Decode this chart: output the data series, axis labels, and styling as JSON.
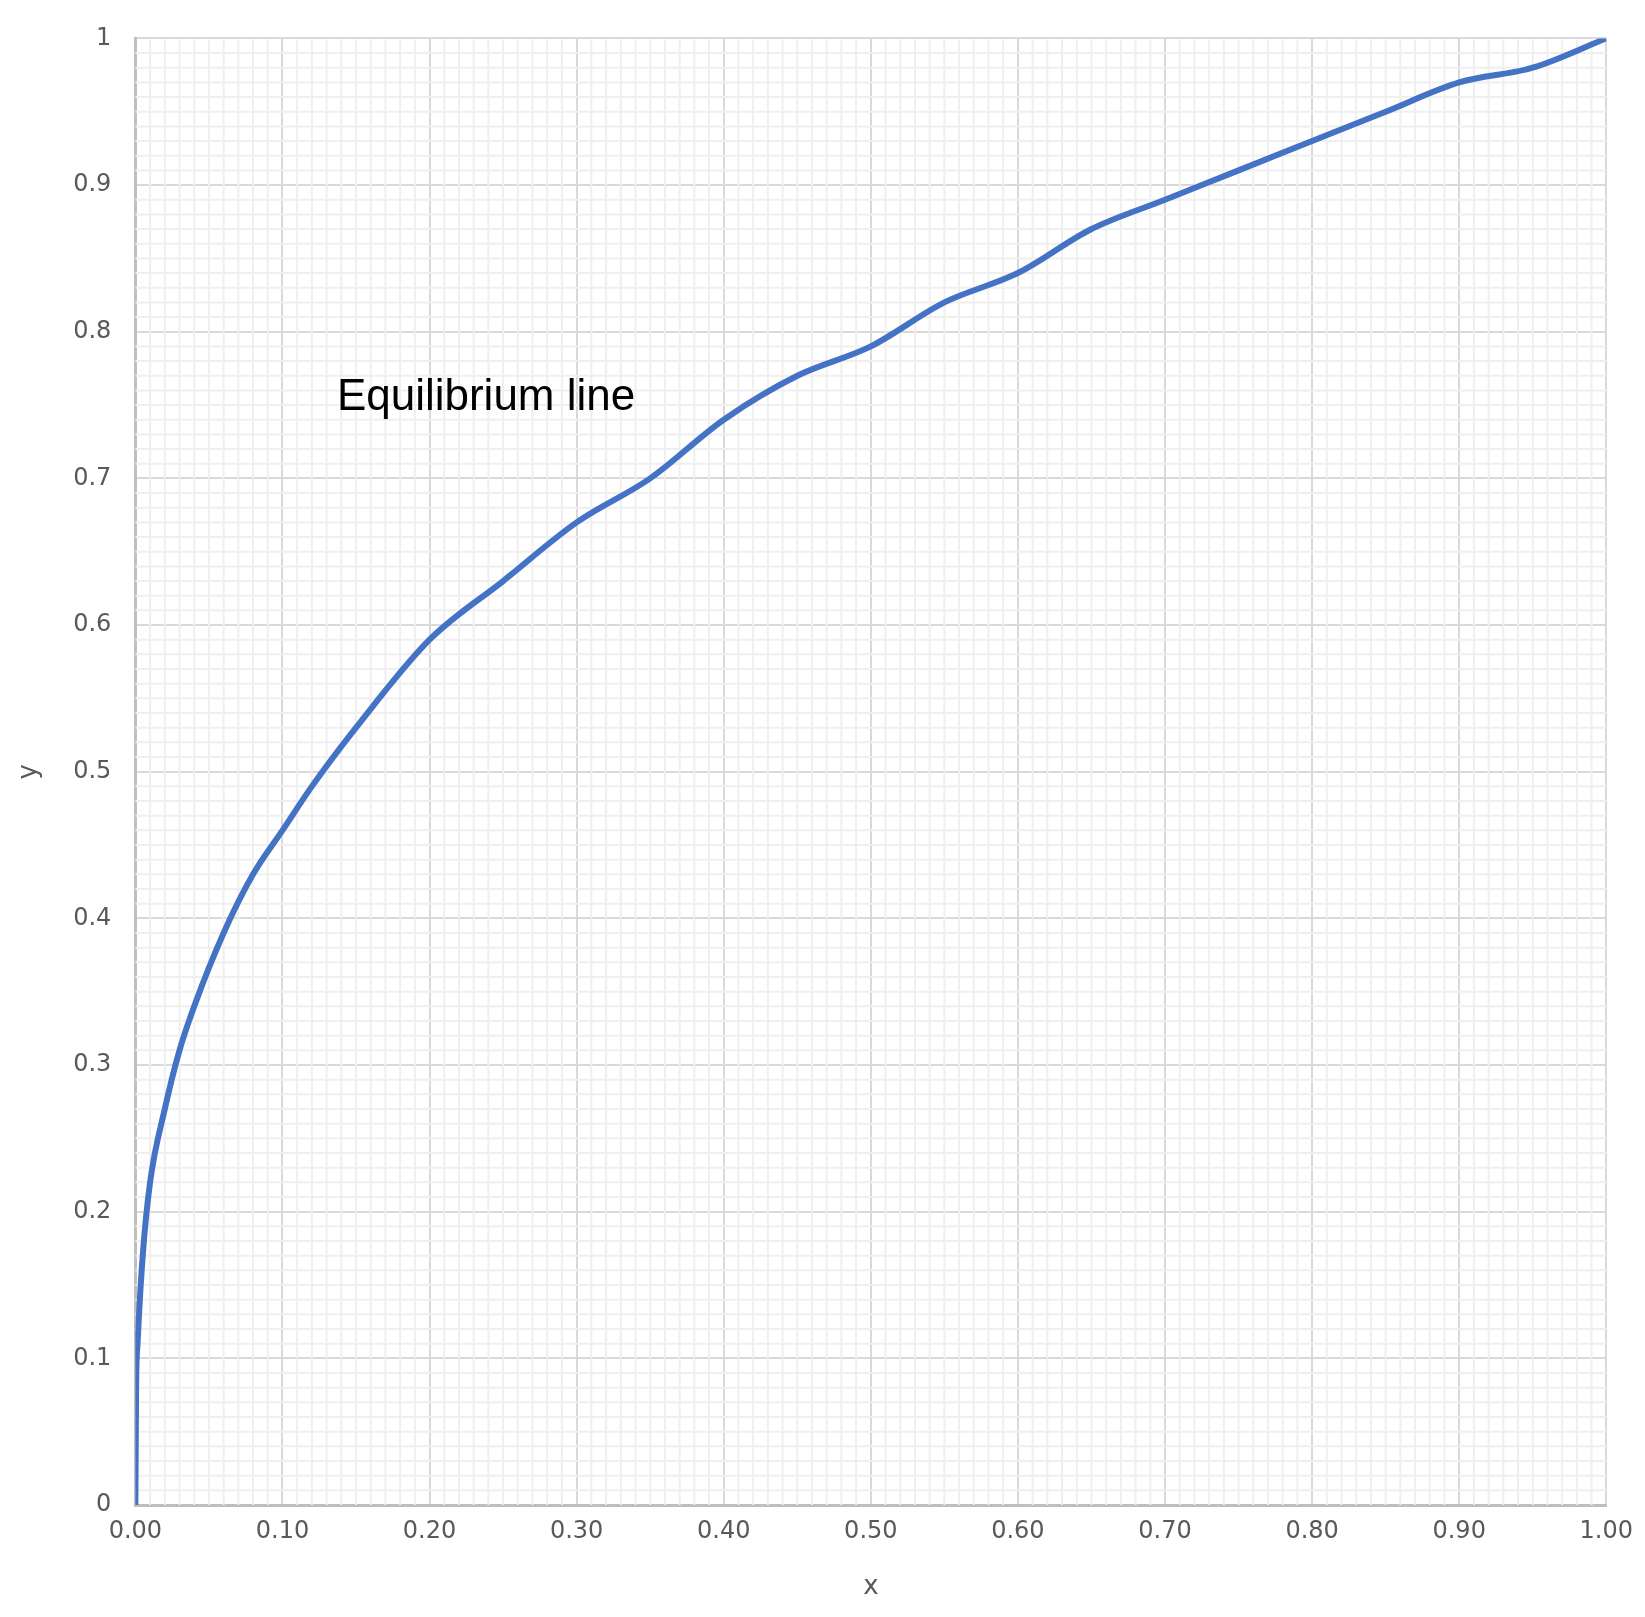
{
  "chart_data": {
    "type": "line",
    "xlabel": "x",
    "ylabel": "y",
    "x": [
      0,
      0.0005,
      0.0015,
      0.005,
      0.01,
      0.02,
      0.03,
      0.04,
      0.06,
      0.08,
      0.1,
      0.12,
      0.15,
      0.2,
      0.25,
      0.3,
      0.35,
      0.4,
      0.45,
      0.5,
      0.55,
      0.6,
      0.65,
      0.7,
      0.75,
      0.8,
      0.85,
      0.9,
      0.95,
      1
    ],
    "series": [
      {
        "color": "#4472c4",
        "values": [
          0,
          0.08,
          0.11,
          0.17,
          0.22,
          0.27,
          0.31,
          0.34,
          0.39,
          0.43,
          0.46,
          0.49,
          0.53,
          0.59,
          0.63,
          0.67,
          0.7,
          0.74,
          0.77,
          0.79,
          0.82,
          0.84,
          0.87,
          0.89,
          0.91,
          0.93,
          0.95,
          0.97,
          0.98,
          1
        ]
      }
    ],
    "xlim": [
      0,
      1
    ],
    "ylim": [
      0,
      1
    ],
    "xticks": [
      {
        "value": 0,
        "label": "0.00"
      },
      {
        "value": 0.1,
        "label": "0.10"
      },
      {
        "value": 0.2,
        "label": "0.20"
      },
      {
        "value": 0.3,
        "label": "0.30"
      },
      {
        "value": 0.4,
        "label": "0.40"
      },
      {
        "value": 0.5,
        "label": "0.50"
      },
      {
        "value": 0.6,
        "label": "0.60"
      },
      {
        "value": 0.7,
        "label": "0.70"
      },
      {
        "value": 0.8,
        "label": "0.80"
      },
      {
        "value": 0.9,
        "label": "0.90"
      },
      {
        "value": 1,
        "label": "1.00"
      }
    ],
    "yticks": [
      0,
      0.1,
      0.2,
      0.3,
      0.4,
      0.5,
      0.6,
      0.7,
      0.8,
      0.9,
      1
    ],
    "grid": true,
    "legend": false,
    "marker": "none",
    "line_style": "solid",
    "annotations": [
      "Equilibrium line"
    ]
  }
}
